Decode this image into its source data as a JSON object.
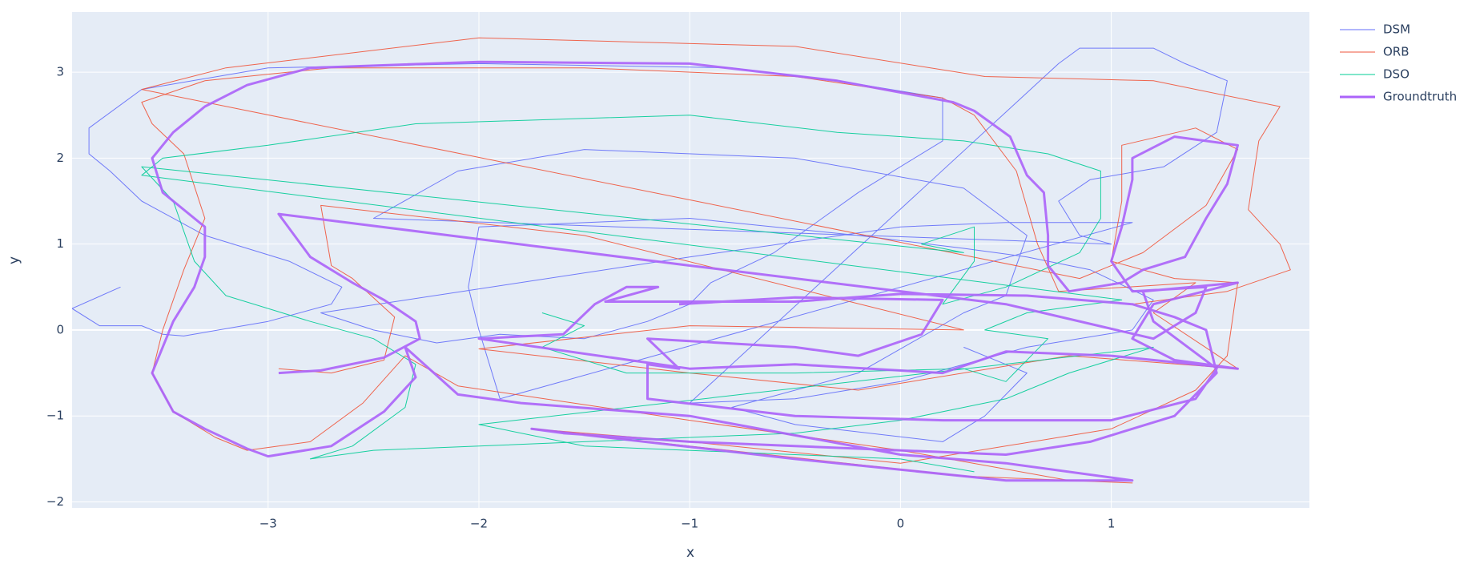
{
  "chart_data": {
    "type": "line",
    "x_label": "x",
    "y_label": "y",
    "xlim": [
      -3.93,
      1.94
    ],
    "ylim": [
      -2.07,
      3.7
    ],
    "xticks": [
      {
        "value": -3,
        "label": "−3"
      },
      {
        "value": -2,
        "label": "−2"
      },
      {
        "value": -1,
        "label": "−1"
      },
      0,
      1
    ],
    "yticks": [
      {
        "value": -2,
        "label": "−2"
      },
      {
        "value": -1,
        "label": "−1"
      },
      0,
      1,
      2,
      3
    ],
    "grid": true,
    "legend": "right",
    "series": [
      {
        "name": "DSM",
        "color": "#636efa",
        "line_width": 1,
        "x": [
          -3.7,
          -3.93,
          -3.8,
          -3.6,
          -3.5,
          -3.4,
          -3.0,
          -2.7,
          -2.65,
          -2.9,
          -3.3,
          -3.6,
          -3.75,
          -3.85,
          -3.85,
          -3.6,
          -3.0,
          -2.0,
          -0.8,
          -0.3,
          0.2,
          0.2,
          -0.2,
          -0.6,
          -0.9,
          -1.0,
          -1.2,
          -1.5,
          -1.9,
          -2.2,
          -2.5,
          -2.75,
          -1.0,
          0.0,
          0.5,
          1.1,
          -1.9,
          -2.0,
          -2.05,
          -2.0,
          -1.0,
          -0.2,
          0.3,
          0.6,
          0.9,
          1.2,
          1.1,
          0.6,
          0.0,
          -0.5,
          -1.0,
          0.75,
          0.85,
          1.2,
          1.35,
          1.55,
          1.5,
          1.25,
          0.9,
          0.75,
          0.85,
          1.0,
          -2.5,
          -2.1,
          -1.5,
          -0.5,
          0.3,
          0.6,
          0.5,
          0.3,
          -0.2,
          -0.8,
          -0.5,
          0.2,
          0.4,
          0.6,
          0.3
        ],
        "values": [
          0.5,
          0.25,
          0.05,
          0.05,
          -0.05,
          -0.07,
          0.1,
          0.3,
          0.5,
          0.8,
          1.1,
          1.5,
          1.85,
          2.05,
          2.35,
          2.8,
          3.05,
          3.1,
          3.05,
          2.9,
          2.7,
          2.2,
          1.6,
          0.9,
          0.55,
          0.3,
          0.1,
          -0.1,
          -0.05,
          -0.15,
          0.0,
          0.2,
          0.85,
          1.2,
          1.25,
          1.25,
          -0.8,
          0.0,
          0.5,
          1.2,
          1.3,
          1.1,
          0.95,
          0.85,
          0.7,
          0.35,
          0.0,
          -0.2,
          -0.6,
          -0.8,
          -0.85,
          3.1,
          3.28,
          3.28,
          3.1,
          2.9,
          2.3,
          1.9,
          1.75,
          1.5,
          1.1,
          1.0,
          1.3,
          1.85,
          2.1,
          2.0,
          1.65,
          1.1,
          0.4,
          0.2,
          -0.5,
          -0.9,
          -1.1,
          -1.3,
          -1.0,
          -0.5,
          -0.2
        ]
      },
      {
        "name": "ORB",
        "color": "#ef553b",
        "line_width": 1,
        "x": [
          -2.95,
          -2.7,
          -2.45,
          -2.4,
          -2.6,
          -2.7,
          -2.75,
          -1.5,
          0.3,
          -1.0,
          -2.0,
          -1.0,
          -0.2,
          0.8,
          1.6,
          1.2,
          1.4,
          0.75,
          0.65,
          0.55,
          0.35,
          0.2,
          -0.5,
          -1.5,
          -2.7,
          -3.3,
          -3.6,
          -3.55,
          -3.4,
          -3.3,
          -3.4,
          -3.5,
          -3.55,
          -3.45,
          -3.25,
          -3.1,
          -2.8,
          -2.55,
          -2.35,
          -2.1,
          -1.0,
          0.0,
          0.8,
          1.1,
          0.3,
          -1.75,
          -1.0,
          0.0,
          1.0,
          1.4,
          1.55,
          1.6,
          1.3,
          1.0,
          1.05,
          1.05,
          1.4,
          1.6,
          1.45,
          1.15,
          0.85,
          -3.6,
          -3.2,
          -2.0,
          -0.5,
          0.4,
          1.2,
          1.8,
          1.7,
          1.65,
          1.8,
          1.85,
          1.55,
          1.1
        ],
        "values": [
          -0.45,
          -0.5,
          -0.35,
          0.15,
          0.6,
          0.75,
          1.45,
          1.1,
          0.0,
          0.05,
          -0.22,
          -0.5,
          -0.7,
          -0.3,
          -0.45,
          0.2,
          0.55,
          0.45,
          1.0,
          1.85,
          2.5,
          2.7,
          2.95,
          3.05,
          3.05,
          2.9,
          2.65,
          2.4,
          2.05,
          1.3,
          0.7,
          0.0,
          -0.5,
          -0.95,
          -1.25,
          -1.4,
          -1.3,
          -0.85,
          -0.3,
          -0.65,
          -1.05,
          -1.4,
          -1.75,
          -1.78,
          -1.7,
          -1.15,
          -1.3,
          -1.55,
          -1.15,
          -0.7,
          -0.3,
          0.55,
          0.6,
          0.8,
          1.5,
          2.15,
          2.35,
          2.1,
          1.45,
          0.9,
          0.6,
          2.8,
          3.05,
          3.4,
          3.3,
          2.95,
          2.9,
          2.6,
          2.2,
          1.4,
          1.0,
          0.7,
          0.45,
          0.3
        ]
      },
      {
        "name": "DSO",
        "color": "#00cc96",
        "line_width": 1,
        "x": [
          -1.7,
          -1.5,
          -1.7,
          -1.3,
          -0.5,
          0.3,
          0.5,
          0.7,
          0.4,
          0.6,
          0.9,
          1.05,
          -3.6,
          -3.5,
          -3.0,
          -2.3,
          -1.0,
          -0.3,
          0.3,
          0.7,
          0.95,
          0.95,
          0.85,
          0.5,
          0.2,
          0.35,
          0.35,
          0.1,
          0.3,
          -3.6,
          -3.45,
          -3.35,
          -3.2,
          -2.8,
          -2.5,
          -2.3,
          -2.35,
          -2.6,
          -2.8,
          -2.5,
          -1.5,
          -0.5,
          0.0,
          0.5,
          0.8,
          1.2,
          -2.0,
          -1.5,
          0.0,
          0.35
        ],
        "values": [
          0.2,
          0.05,
          -0.2,
          -0.5,
          -0.5,
          -0.45,
          -0.6,
          -0.1,
          0.0,
          0.2,
          0.3,
          0.35,
          1.8,
          2.0,
          2.15,
          2.4,
          2.5,
          2.3,
          2.2,
          2.05,
          1.85,
          1.3,
          0.9,
          0.5,
          0.3,
          0.8,
          1.2,
          1.0,
          0.9,
          1.9,
          1.5,
          0.8,
          0.4,
          0.1,
          -0.1,
          -0.4,
          -0.9,
          -1.35,
          -1.5,
          -1.4,
          -1.3,
          -1.2,
          -1.05,
          -0.8,
          -0.5,
          -0.2,
          -1.1,
          -1.35,
          -1.5,
          -1.65
        ]
      },
      {
        "name": "Groundtruth",
        "color": "#ab63fa",
        "line_width": 3,
        "x": [
          -2.95,
          -2.75,
          -2.45,
          -2.28,
          -2.3,
          -2.45,
          -2.6,
          -2.8,
          -2.95,
          -1.0,
          0.5,
          1.2,
          1.4,
          1.45,
          1.1,
          1.0,
          1.05,
          1.1,
          1.1,
          1.3,
          1.6,
          1.55,
          1.45,
          1.35,
          1.15,
          1.05,
          0.8,
          0.7,
          0.7,
          0.68,
          0.6,
          0.52,
          0.35,
          0.25,
          -0.3,
          -1.0,
          -2.0,
          -2.8,
          -3.1,
          -3.3,
          -3.45,
          -3.55,
          -3.5,
          -3.3,
          -3.3,
          -3.35,
          -3.45,
          -3.55,
          -3.45,
          -3.3,
          -3.1,
          -3.0,
          -2.7,
          -2.45,
          -2.3,
          -2.35,
          -2.1,
          -1.8,
          -1.0,
          0.0,
          0.5,
          1.1,
          0.5,
          -0.5,
          -1.75,
          -1.6,
          -1.0,
          -0.5,
          0.5,
          0.9,
          1.3,
          1.5,
          1.45,
          1.3,
          1.1,
          0.6,
          0.0,
          -0.5,
          -1.0,
          -1.4,
          -1.15,
          -1.3,
          -1.45,
          -1.6,
          -2.0,
          -1.0,
          -0.5,
          0.2,
          0.5,
          1.0,
          1.6,
          1.3,
          1.1,
          1.2,
          1.6,
          1.15,
          1.2,
          1.5,
          1.4,
          1.0,
          0.2,
          -0.5,
          -1.2,
          -1.2,
          -1.05,
          -1.2,
          -0.5,
          -0.2,
          0.1,
          0.2,
          -0.5,
          -1.05
        ],
        "values": [
          -0.5,
          -0.47,
          -0.32,
          -0.1,
          0.1,
          0.35,
          0.55,
          0.85,
          1.35,
          0.75,
          0.3,
          -0.1,
          0.2,
          0.5,
          0.45,
          0.8,
          1.2,
          1.75,
          2.0,
          2.25,
          2.15,
          1.7,
          1.3,
          0.85,
          0.7,
          0.55,
          0.45,
          0.75,
          1.1,
          1.6,
          1.8,
          2.25,
          2.55,
          2.65,
          2.9,
          3.1,
          3.12,
          3.05,
          2.85,
          2.6,
          2.3,
          2.0,
          1.6,
          1.2,
          0.85,
          0.5,
          0.1,
          -0.5,
          -0.95,
          -1.15,
          -1.38,
          -1.47,
          -1.35,
          -0.95,
          -0.55,
          -0.2,
          -0.75,
          -0.85,
          -1.0,
          -1.45,
          -1.55,
          -1.75,
          -1.75,
          -1.5,
          -1.15,
          -1.2,
          -1.3,
          -1.35,
          -1.45,
          -1.3,
          -1.0,
          -0.5,
          0.0,
          0.15,
          0.3,
          0.4,
          0.42,
          0.33,
          0.33,
          0.33,
          0.5,
          0.5,
          0.3,
          -0.05,
          -0.1,
          -0.45,
          -0.4,
          -0.5,
          -0.25,
          -0.3,
          -0.45,
          -0.35,
          -0.1,
          0.3,
          0.55,
          0.45,
          0.1,
          -0.45,
          -0.8,
          -1.05,
          -1.05,
          -1.0,
          -0.8,
          -0.4,
          -0.45,
          -0.1,
          -0.2,
          -0.3,
          -0.05,
          0.35,
          0.38,
          0.3
        ]
      }
    ]
  }
}
